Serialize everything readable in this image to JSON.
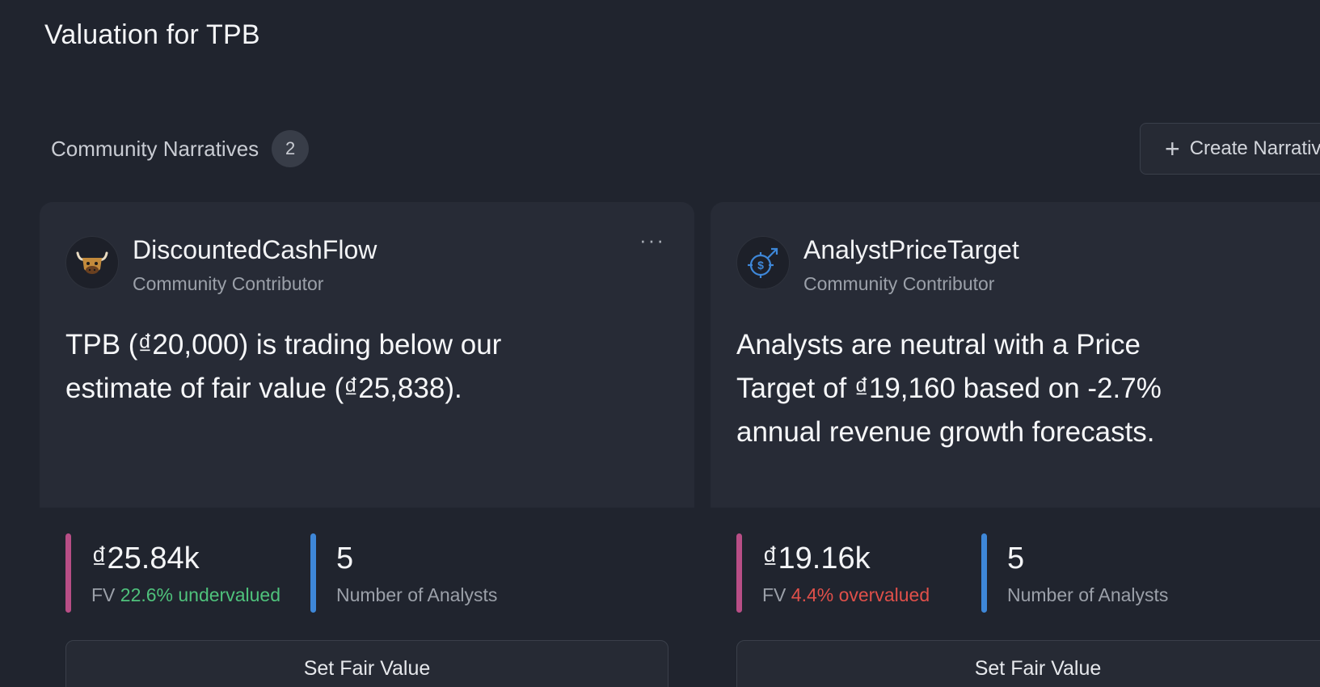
{
  "page": {
    "title": "Valuation for TPB"
  },
  "narratives": {
    "label": "Community Narratives",
    "count": "2",
    "create_label": "Create Narrativ"
  },
  "cards": [
    {
      "author": "DiscountedCashFlow",
      "role": "Community Contributor",
      "avatar_icon": "bull-mascot-icon",
      "text": "TPB (₫20,000) is trading below our estimate of fair value (₫25,838).",
      "fair_value": "₫25.84k",
      "fv_label": "FV",
      "fv_status": "22.6% undervalued",
      "fv_status_color": "#4fc27c",
      "analysts": "5",
      "analysts_label": "Number of Analysts",
      "button_label": "Set Fair Value"
    },
    {
      "author": "AnalystPriceTarget",
      "role": "Community Contributor",
      "avatar_icon": "dollar-target-icon",
      "text": "Analysts are neutral with a Price Target of ₫19,160 based on -2.7% annual revenue growth forecasts.",
      "fair_value": "₫19.16k",
      "fv_label": "FV",
      "fv_status": "4.4% overvalued",
      "fv_status_color": "#e0504a",
      "analysts": "5",
      "analysts_label": "Number of Analysts",
      "button_label": "Set Fair Value"
    }
  ],
  "colors": {
    "fv_bar": "#b84e86",
    "analysts_bar": "#3e87d8",
    "background": "#20242e",
    "card": "#272b36"
  }
}
